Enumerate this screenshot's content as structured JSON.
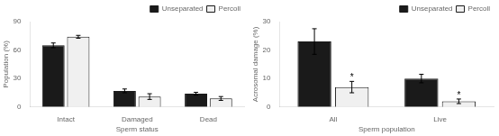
{
  "chart_data": [
    {
      "type": "bar",
      "categories": [
        "Intact",
        "Damaged",
        "Dead"
      ],
      "series": [
        {
          "name": "Unseparated",
          "color": "#1a1a1a",
          "values": [
            65,
            17,
            14
          ],
          "errors": [
            2.5,
            2.0,
            1.5
          ]
        },
        {
          "name": "Percoll",
          "color": "#f0f0f0",
          "values": [
            74,
            11,
            9
          ],
          "errors": [
            1.5,
            3.0,
            2.0
          ]
        }
      ],
      "xlabel": "Sperm status",
      "ylabel": "Population (%)",
      "ylim": [
        0,
        90
      ],
      "yticks": [
        0,
        30,
        60,
        90
      ],
      "grid": false,
      "legend": "upper right"
    },
    {
      "type": "bar",
      "categories": [
        "All",
        "Live"
      ],
      "series": [
        {
          "name": "Unseparated",
          "color": "#1a1a1a",
          "values": [
            23,
            10
          ],
          "errors": [
            4.5,
            1.5
          ]
        },
        {
          "name": "Percoll",
          "color": "#f0f0f0",
          "values": [
            7,
            2
          ],
          "errors": [
            2.0,
            0.8
          ]
        }
      ],
      "xlabel": "Sperm population",
      "ylabel": "Acrosomal damage (%)",
      "ylim": [
        0,
        30
      ],
      "yticks": [
        0,
        10,
        20,
        30
      ],
      "grid": false,
      "legend": "upper right",
      "annotations": [
        {
          "text": "*",
          "x": "All",
          "series": "Percoll"
        },
        {
          "text": "*",
          "x": "Live",
          "series": "Percoll"
        }
      ]
    }
  ]
}
